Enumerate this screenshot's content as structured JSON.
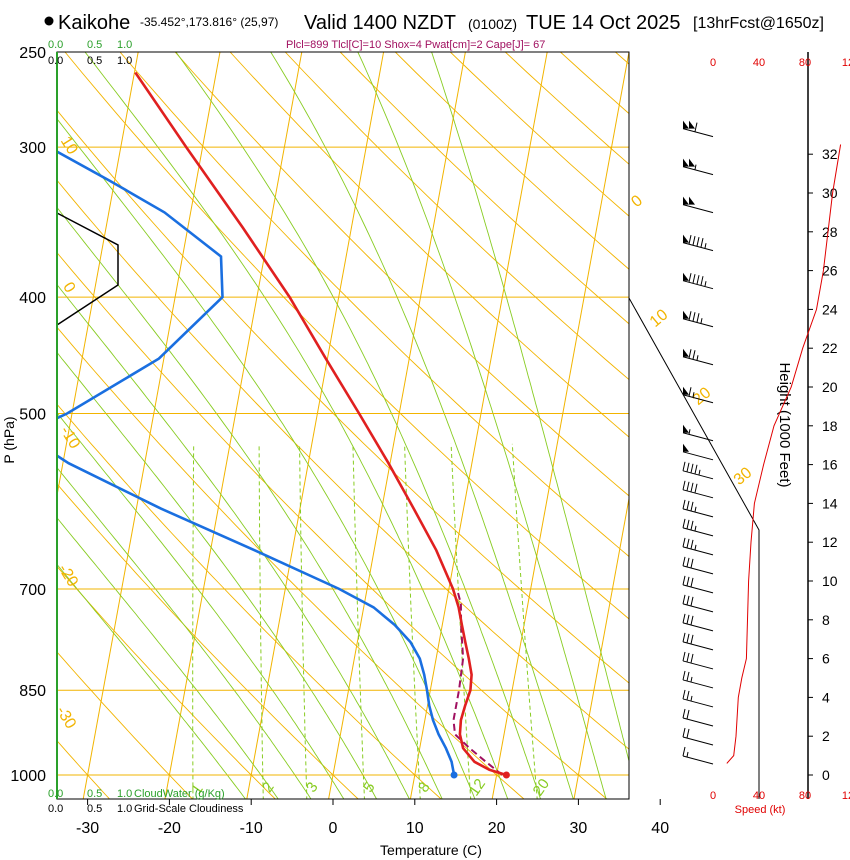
{
  "header": {
    "station": "Kaikohe",
    "coords": "-35.452°,173.816° (25,97)",
    "valid": "Valid 1400 NZDT",
    "utc": "(0100Z)",
    "date": "TUE 14 Oct 2025",
    "forecast": "[13hrFcst@1650z]",
    "indices": "Plcl=899 Tlcl[C]=10 Shox=4 Pwat[cm]=2 Cape[J]= 67"
  },
  "colors": {
    "isotherm": "#f2b400",
    "mixing": "#88cc22",
    "temperature": "#e02020",
    "dewpoint": "#1a6fe0",
    "parcel": "#a01060",
    "cloud": "#2aa02a",
    "wind": "#000000",
    "speed": "#e00000"
  },
  "chart_data": {
    "type": "skew-t",
    "title": "Valid 1400 NZDT (0100Z) TUE 14 Oct 2025",
    "xlabel": "Temperature (C)",
    "ylabel": "P (hPa)",
    "right_label": "Height (1000 Feet)",
    "x_ticks": [
      "-30",
      "-20",
      "-10",
      "0",
      "10",
      "20",
      "30",
      "40"
    ],
    "pressure_ticks": [
      "250",
      "300",
      "400",
      "500",
      "700",
      "850",
      "1000"
    ],
    "height_ticks": [
      "0",
      "2",
      "4",
      "6",
      "8",
      "10",
      "12",
      "14",
      "16",
      "18",
      "20",
      "22",
      "24",
      "26",
      "28",
      "30",
      "32"
    ],
    "temperature_profile": [
      {
        "p": 1000,
        "t": 21.2
      },
      {
        "p": 990,
        "t": 19.0
      },
      {
        "p": 975,
        "t": 17.0
      },
      {
        "p": 950,
        "t": 15.3
      },
      {
        "p": 925,
        "t": 14.6
      },
      {
        "p": 900,
        "t": 14.4
      },
      {
        "p": 875,
        "t": 14.6
      },
      {
        "p": 850,
        "t": 14.9
      },
      {
        "p": 825,
        "t": 14.7
      },
      {
        "p": 800,
        "t": 14.0
      },
      {
        "p": 775,
        "t": 13.2
      },
      {
        "p": 750,
        "t": 12.4
      },
      {
        "p": 725,
        "t": 11.6
      },
      {
        "p": 700,
        "t": 10.5
      },
      {
        "p": 650,
        "t": 7.6
      },
      {
        "p": 600,
        "t": 3.9
      },
      {
        "p": 550,
        "t": -0.2
      },
      {
        "p": 500,
        "t": -4.9
      },
      {
        "p": 450,
        "t": -10.2
      },
      {
        "p": 400,
        "t": -16.0
      },
      {
        "p": 350,
        "t": -23.3
      },
      {
        "p": 300,
        "t": -32.0
      },
      {
        "p": 260,
        "t": -39.9
      }
    ],
    "dewpoint_profile": [
      {
        "p": 1000,
        "t": 14.8
      },
      {
        "p": 975,
        "t": 14.2
      },
      {
        "p": 950,
        "t": 13.2
      },
      {
        "p": 925,
        "t": 12.0
      },
      {
        "p": 900,
        "t": 11.0
      },
      {
        "p": 875,
        "t": 10.2
      },
      {
        "p": 850,
        "t": 9.6
      },
      {
        "p": 825,
        "t": 8.9
      },
      {
        "p": 800,
        "t": 8.0
      },
      {
        "p": 775,
        "t": 6.5
      },
      {
        "p": 750,
        "t": 4.2
      },
      {
        "p": 725,
        "t": 1.2
      },
      {
        "p": 700,
        "t": -3.4
      },
      {
        "p": 650,
        "t": -14.6
      },
      {
        "p": 600,
        "t": -27.0
      },
      {
        "p": 550,
        "t": -39.3
      },
      {
        "p": 520,
        "t": -45.5
      },
      {
        "p": 500,
        "t": -40.6
      },
      {
        "p": 450,
        "t": -30.6
      },
      {
        "p": 400,
        "t": -24.2
      },
      {
        "p": 370,
        "t": -25.3
      },
      {
        "p": 340,
        "t": -33.2
      },
      {
        "p": 320,
        "t": -40.6
      },
      {
        "p": 300,
        "t": -48.8
      },
      {
        "p": 290,
        "t": -54.5
      },
      {
        "p": 270,
        "t": -54.8
      },
      {
        "p": 260,
        "t": -57.6
      }
    ],
    "parcel_profile": [
      {
        "p": 1000,
        "t": 20.7
      },
      {
        "p": 975,
        "t": 18.4
      },
      {
        "p": 950,
        "t": 16.1
      },
      {
        "p": 925,
        "t": 14.0
      },
      {
        "p": 900,
        "t": 13.5
      },
      {
        "p": 875,
        "t": 13.5
      },
      {
        "p": 850,
        "t": 13.5
      },
      {
        "p": 800,
        "t": 13.3
      },
      {
        "p": 750,
        "t": 12.3
      },
      {
        "p": 720,
        "t": 11.8
      },
      {
        "p": 700,
        "t": 11.0
      }
    ],
    "surface_temperature": 21.2,
    "surface_dewpoint": 14.8,
    "isotherm_labels": [
      "10",
      "0",
      "-10",
      "-20",
      "-30",
      "0",
      "10",
      "20",
      "30"
    ],
    "mixing_ratio_labels": [
      "1",
      "2",
      "3",
      "5",
      "8",
      "12",
      "20"
    ],
    "cloud_water_ticks": [
      "0.0",
      "0.5",
      "1.0"
    ],
    "cloud_water_label": "CloudWater (g/Kg)",
    "cloudiness_ticks": [
      "0.0",
      "0.5",
      "1.0"
    ],
    "cloudiness_label": "Grid-Scale Cloudiness",
    "speed_ticks": [
      "0",
      "40",
      "80",
      "12"
    ],
    "speed_label": "Speed (kt)",
    "speed_profile": [
      {
        "h": 0.6,
        "s": 12
      },
      {
        "h": 1,
        "s": 18
      },
      {
        "h": 2,
        "s": 20
      },
      {
        "h": 4,
        "s": 22
      },
      {
        "h": 5,
        "s": 25
      },
      {
        "h": 6,
        "s": 29
      },
      {
        "h": 8,
        "s": 30
      },
      {
        "h": 10,
        "s": 31
      },
      {
        "h": 12,
        "s": 33
      },
      {
        "h": 14,
        "s": 36
      },
      {
        "h": 16,
        "s": 44
      },
      {
        "h": 18,
        "s": 53
      },
      {
        "h": 20,
        "s": 68
      },
      {
        "h": 22,
        "s": 78
      },
      {
        "h": 24,
        "s": 90
      },
      {
        "h": 26,
        "s": 96
      },
      {
        "h": 28,
        "s": 100
      },
      {
        "h": 30,
        "s": 104
      },
      {
        "h": 32.5,
        "s": 111
      }
    ],
    "wind_barbs": [
      {
        "h": 1,
        "kt": 15
      },
      {
        "h": 2,
        "kt": 20
      },
      {
        "h": 3,
        "kt": 20
      },
      {
        "h": 4,
        "kt": 25
      },
      {
        "h": 5,
        "kt": 25
      },
      {
        "h": 6,
        "kt": 30
      },
      {
        "h": 7,
        "kt": 30
      },
      {
        "h": 8,
        "kt": 30
      },
      {
        "h": 9,
        "kt": 30
      },
      {
        "h": 10,
        "kt": 30
      },
      {
        "h": 11,
        "kt": 30
      },
      {
        "h": 12,
        "kt": 35
      },
      {
        "h": 13,
        "kt": 35
      },
      {
        "h": 14,
        "kt": 35
      },
      {
        "h": 15,
        "kt": 40
      },
      {
        "h": 16,
        "kt": 45
      },
      {
        "h": 17,
        "kt": 50
      },
      {
        "h": 18,
        "kt": 55
      },
      {
        "h": 20,
        "kt": 65
      },
      {
        "h": 22,
        "kt": 75
      },
      {
        "h": 24,
        "kt": 85
      },
      {
        "h": 26,
        "kt": 95
      },
      {
        "h": 28,
        "kt": 95
      },
      {
        "h": 30,
        "kt": 100
      },
      {
        "h": 32,
        "kt": 105
      },
      {
        "h": 34,
        "kt": 110
      }
    ]
  }
}
